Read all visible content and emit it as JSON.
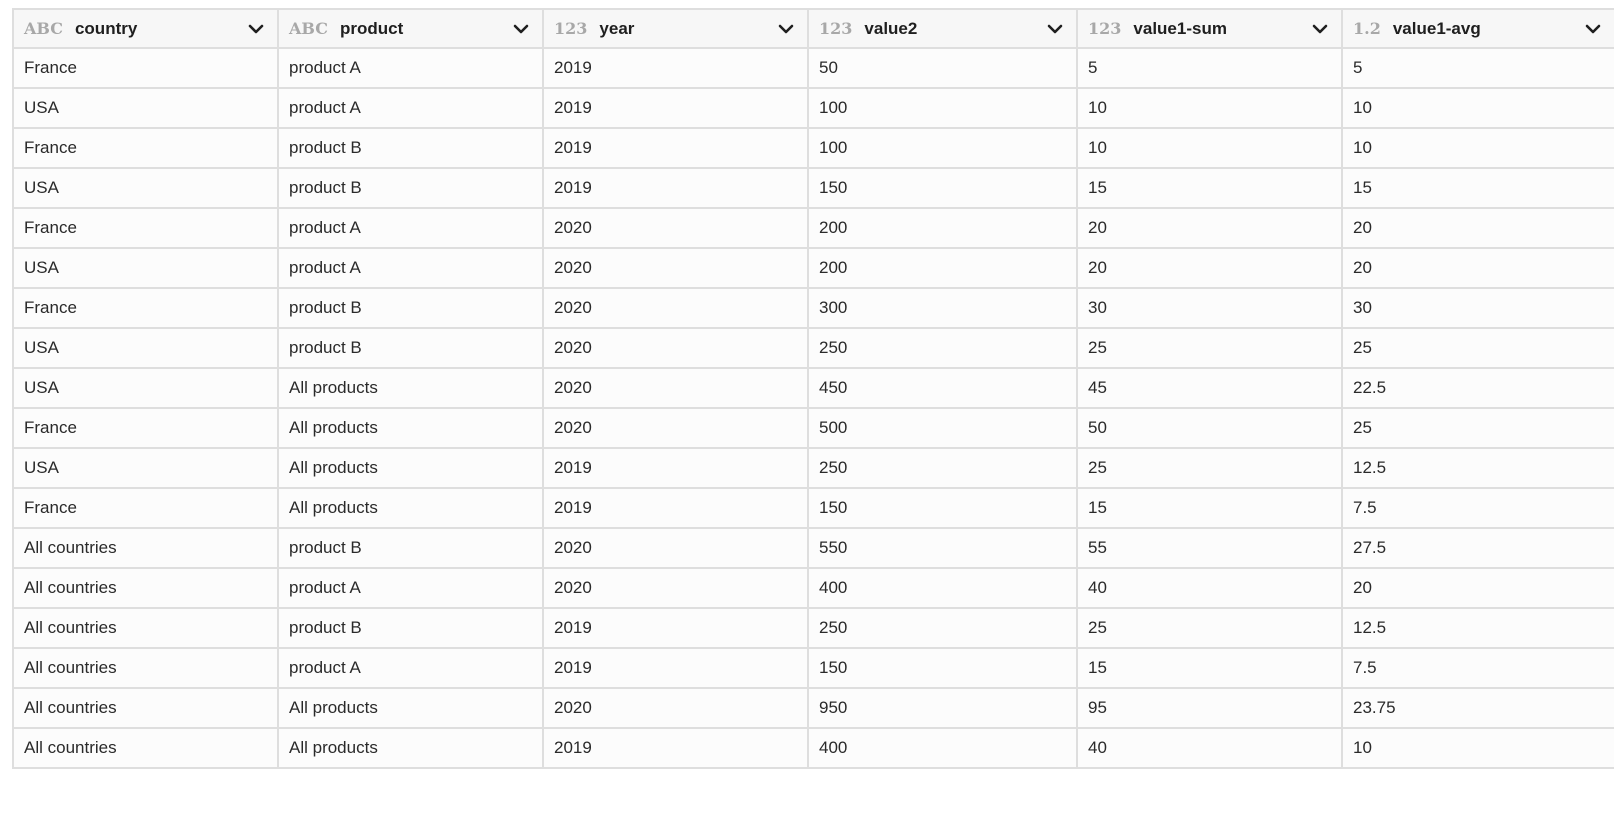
{
  "columns": [
    {
      "type": "ABC",
      "name": "country",
      "icon": "chevron-down-icon"
    },
    {
      "type": "ABC",
      "name": "product",
      "icon": "chevron-down-icon"
    },
    {
      "type": "123",
      "name": "year",
      "icon": "chevron-down-icon"
    },
    {
      "type": "123",
      "name": "value2",
      "icon": "chevron-down-icon"
    },
    {
      "type": "123",
      "name": "value1-sum",
      "icon": "chevron-down-icon"
    },
    {
      "type": "1.2",
      "name": "value1-avg",
      "icon": "chevron-down-icon"
    }
  ],
  "rows": [
    [
      "France",
      "product A",
      "2019",
      "50",
      "5",
      "5"
    ],
    [
      "USA",
      "product A",
      "2019",
      "100",
      "10",
      "10"
    ],
    [
      "France",
      "product B",
      "2019",
      "100",
      "10",
      "10"
    ],
    [
      "USA",
      "product B",
      "2019",
      "150",
      "15",
      "15"
    ],
    [
      "France",
      "product A",
      "2020",
      "200",
      "20",
      "20"
    ],
    [
      "USA",
      "product A",
      "2020",
      "200",
      "20",
      "20"
    ],
    [
      "France",
      "product B",
      "2020",
      "300",
      "30",
      "30"
    ],
    [
      "USA",
      "product B",
      "2020",
      "250",
      "25",
      "25"
    ],
    [
      "USA",
      "All products",
      "2020",
      "450",
      "45",
      "22.5"
    ],
    [
      "France",
      "All products",
      "2020",
      "500",
      "50",
      "25"
    ],
    [
      "USA",
      "All products",
      "2019",
      "250",
      "25",
      "12.5"
    ],
    [
      "France",
      "All products",
      "2019",
      "150",
      "15",
      "7.5"
    ],
    [
      "All countries",
      "product B",
      "2020",
      "550",
      "55",
      "27.5"
    ],
    [
      "All countries",
      "product A",
      "2020",
      "400",
      "40",
      "20"
    ],
    [
      "All countries",
      "product B",
      "2019",
      "250",
      "25",
      "12.5"
    ],
    [
      "All countries",
      "product A",
      "2019",
      "150",
      "15",
      "7.5"
    ],
    [
      "All countries",
      "All products",
      "2020",
      "950",
      "95",
      "23.75"
    ],
    [
      "All countries",
      "All products",
      "2019",
      "400",
      "40",
      "10"
    ]
  ]
}
